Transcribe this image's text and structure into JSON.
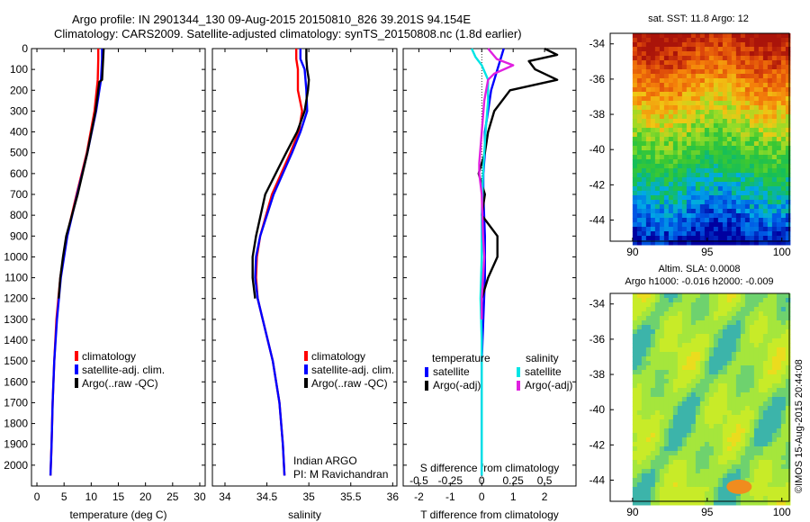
{
  "header": {
    "line1": "Argo profile: IN 2901344_130 09-Aug-2015 20150810_826 39.201S 94.154E",
    "line2": "Climatology: CARS2009. Satellite-adjusted climatology: synTS_20150808.nc (1.8d earlier)"
  },
  "side_stamp": "©IMOS 15-Aug-2015 20:44:08",
  "colors": {
    "climatology": "#ff0000",
    "satellite": "#0000ff",
    "argo": "#000000",
    "cyan": "#00e5e5",
    "magenta": "#e020e0"
  },
  "chart_data": [
    {
      "type": "line",
      "name": "temperature",
      "xlabel": "temperature (deg C)",
      "xlim": [
        -1,
        31
      ],
      "xticks": [
        0,
        5,
        10,
        15,
        20,
        25,
        30
      ],
      "ylim": [
        2100,
        0
      ],
      "yticks": [
        0,
        100,
        200,
        300,
        400,
        500,
        600,
        700,
        800,
        900,
        1000,
        1100,
        1200,
        1300,
        1400,
        1500,
        1600,
        1700,
        1800,
        1900,
        2000
      ],
      "legend": [
        "climatology",
        "satellite-adj. clim.",
        "Argo(..raw -QC)"
      ],
      "series": [
        {
          "name": "climatology",
          "color": "#ff0000",
          "depth": [
            0,
            50,
            150,
            300,
            500,
            700,
            900,
            1100,
            1300,
            1500,
            1700,
            1900,
            2050
          ],
          "values": [
            11.3,
            11.3,
            11.2,
            10.6,
            9.2,
            7.3,
            5.5,
            4.3,
            3.6,
            3.2,
            2.9,
            2.7,
            2.5
          ]
        },
        {
          "name": "satellite-adj. clim.",
          "color": "#0000ff",
          "depth": [
            0,
            50,
            150,
            300,
            500,
            700,
            900,
            1100,
            1300,
            1500,
            1700,
            1900,
            2050
          ],
          "values": [
            12.0,
            12.0,
            11.8,
            10.9,
            9.3,
            7.4,
            5.6,
            4.4,
            3.7,
            3.2,
            2.9,
            2.7,
            2.5
          ]
        },
        {
          "name": "Argo(..raw -QC)",
          "color": "#000000",
          "depth": [
            0,
            50,
            150,
            160,
            300,
            500,
            700,
            900,
            1000,
            1100,
            1200
          ],
          "values": [
            12.3,
            12.2,
            12.0,
            11.5,
            10.8,
            9.3,
            7.5,
            5.4,
            4.8,
            4.3,
            4.0
          ]
        }
      ]
    },
    {
      "type": "line",
      "name": "salinity",
      "xlabel": "salinity",
      "xlim": [
        33.85,
        36.05
      ],
      "xticks": [
        34,
        34.5,
        35,
        35.5,
        36
      ],
      "ylim": [
        2100,
        0
      ],
      "legend": [
        "climatology",
        "satellite-adj. clim.",
        "Argo(..raw -QC)"
      ],
      "annotation": [
        "Indian ARGO",
        "PI: M Ravichandran"
      ],
      "series": [
        {
          "name": "climatology",
          "color": "#ff0000",
          "depth": [
            0,
            50,
            100,
            200,
            300,
            400,
            500,
            700,
            900,
            1000,
            1100,
            1200,
            1300,
            1500,
            1700,
            1900,
            2050
          ],
          "values": [
            34.85,
            34.85,
            34.87,
            34.87,
            34.92,
            34.88,
            34.78,
            34.56,
            34.42,
            34.38,
            34.37,
            34.39,
            34.45,
            34.57,
            34.65,
            34.69,
            34.71
          ]
        },
        {
          "name": "satellite-adj. clim.",
          "color": "#0000ff",
          "depth": [
            0,
            50,
            100,
            200,
            300,
            400,
            500,
            700,
            900,
            1000,
            1100,
            1200,
            1300,
            1500,
            1700,
            1900,
            2050
          ],
          "values": [
            34.9,
            34.9,
            34.95,
            34.97,
            34.98,
            34.9,
            34.8,
            34.58,
            34.42,
            34.37,
            34.36,
            34.39,
            34.45,
            34.57,
            34.65,
            34.69,
            34.71
          ]
        },
        {
          "name": "Argo(..raw -QC)",
          "color": "#000000",
          "depth": [
            0,
            50,
            100,
            150,
            200,
            300,
            400,
            500,
            700,
            900,
            1000,
            1100,
            1200
          ],
          "values": [
            34.97,
            34.97,
            34.98,
            35.0,
            34.99,
            34.95,
            34.86,
            34.73,
            34.48,
            34.37,
            34.33,
            34.33,
            34.36
          ]
        }
      ]
    },
    {
      "type": "line",
      "name": "difference",
      "xlabel": "T difference from climatology",
      "xlabel_top": "S difference from climatology",
      "xlim": [
        -2.5,
        3.0
      ],
      "xticks": [
        -2,
        -1,
        0,
        1,
        2
      ],
      "xticks_top_labels": [
        "-0.5",
        "-0.25",
        "0",
        "0.25",
        "0.5"
      ],
      "ylim": [
        2100,
        0
      ],
      "legend_titles": [
        "temperature",
        "salinity"
      ],
      "legend": [
        "satellite",
        "Argo(-adj)",
        "satellite",
        "Argo(-adj)"
      ],
      "series": [
        {
          "name": "T satellite",
          "color": "#0000ff",
          "depth": [
            0,
            50,
            100,
            200,
            300,
            400,
            500,
            600,
            700,
            900,
            1100,
            1300,
            1500,
            1700,
            1900,
            2050
          ],
          "values": [
            0.7,
            0.6,
            0.5,
            0.3,
            0.2,
            0.1,
            0.1,
            0.05,
            0.05,
            0.1,
            0.1,
            0.05,
            0.0,
            0.0,
            0.0,
            0.0
          ]
        },
        {
          "name": "T Argo(-adj)",
          "color": "#000000",
          "depth": [
            0,
            30,
            60,
            100,
            150,
            200,
            300,
            400,
            500,
            600,
            700,
            800,
            900,
            1000,
            1100,
            1200
          ],
          "values": [
            2.0,
            2.4,
            1.5,
            1.7,
            2.4,
            0.9,
            0.4,
            0.2,
            0.1,
            -0.1,
            0.1,
            0.0,
            0.5,
            0.5,
            0.2,
            0.0
          ]
        },
        {
          "name": "S satellite",
          "color": "#00e5e5",
          "depth": [
            0,
            40,
            80,
            150,
            250,
            400,
            600,
            800,
            1000,
            1200,
            1400,
            1600,
            1800,
            2000,
            2050
          ],
          "values": [
            -0.08,
            -0.05,
            0.0,
            0.05,
            0.05,
            0.03,
            0.01,
            0.0,
            0.0,
            -0.01,
            0.0,
            0.0,
            0.0,
            0.0,
            0.0
          ]
        },
        {
          "name": "S Argo(-adj)",
          "color": "#e020e0",
          "depth": [
            0,
            50,
            80,
            120,
            150,
            250,
            400,
            550,
            600,
            700,
            900,
            1000,
            1100,
            1200,
            1300
          ],
          "values": [
            0.05,
            0.12,
            0.25,
            0.1,
            0.05,
            0.02,
            0.0,
            -0.02,
            -0.02,
            0.0,
            0.01,
            0.02,
            0.01,
            0.0,
            0.0
          ]
        }
      ]
    },
    {
      "type": "heatmap",
      "name": "sst_map",
      "title": "sat. SST: 11.8 Argo: 12",
      "xlim": [
        88.5,
        100.5
      ],
      "ylim": [
        -45.2,
        -33.4
      ],
      "xticks": [
        90,
        95,
        100
      ],
      "yticks": [
        -34,
        -36,
        -38,
        -40,
        -42,
        -44
      ]
    },
    {
      "type": "heatmap",
      "name": "sla_map",
      "title": [
        "Altim. SLA: 0.0008",
        "Argo h1000: -0.016 h2000: -0.009"
      ],
      "xlim": [
        88.5,
        100.5
      ],
      "ylim": [
        -45.2,
        -33.4
      ],
      "xticks": [
        90,
        95,
        100
      ],
      "yticks": [
        -34,
        -36,
        -38,
        -40,
        -42,
        -44
      ]
    }
  ]
}
